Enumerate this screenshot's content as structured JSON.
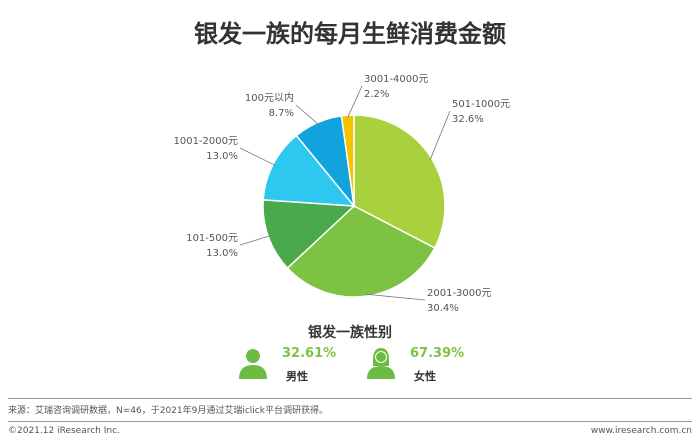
{
  "title": "银发一族的每月生鲜消费金额",
  "chart_data": {
    "type": "pie",
    "title": "银发一族的每月生鲜消费金额",
    "slices": [
      {
        "label": "501-1000元",
        "value": 32.6,
        "value_label": "32.6%",
        "color": "#a9d13d"
      },
      {
        "label": "2001-3000元",
        "value": 30.4,
        "value_label": "30.4%",
        "color": "#7dc243"
      },
      {
        "label": "101-500元",
        "value": 13.0,
        "value_label": "13.0%",
        "color": "#4aa94a"
      },
      {
        "label": "1001-2000元",
        "value": 13.0,
        "value_label": "13.0%",
        "color": "#2ec7f0"
      },
      {
        "label": "100元以内",
        "value": 8.7,
        "value_label": "8.7%",
        "color": "#12a3df"
      },
      {
        "label": "3001-4000元",
        "value": 2.2,
        "value_label": "2.2%",
        "color": "#f5c400"
      }
    ]
  },
  "gender": {
    "title": "银发一族性别",
    "male": {
      "percent": "32.61%",
      "label": "男性",
      "icon": "male-person-icon"
    },
    "female": {
      "percent": "67.39%",
      "label": "女性",
      "icon": "female-person-icon"
    }
  },
  "footer": {
    "source": "来源：艾瑞咨询调研数据，N=46，于2021年9月通过艾瑞iclick平台调研获得。",
    "copyright": "©2021.12 iResearch Inc.",
    "website": "www.iresearch.com.cn"
  },
  "colors": {
    "accent": "#7dc243",
    "icon": "#6dbb42"
  }
}
